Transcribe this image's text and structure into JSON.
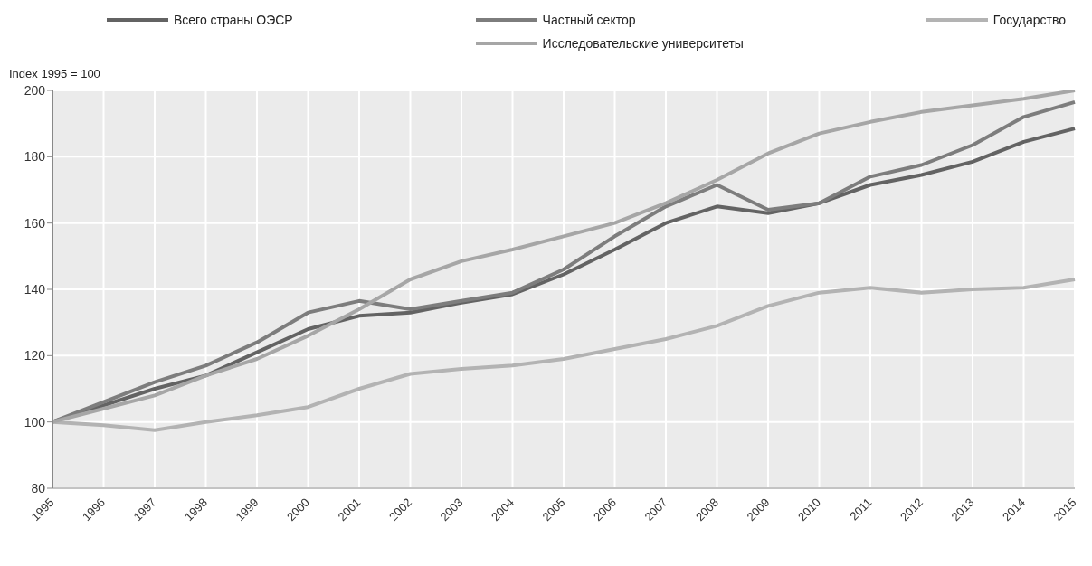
{
  "chart_data": {
    "type": "line",
    "ylabel": "Index 1995 = 100",
    "categories": [
      "1995",
      "1996",
      "1997",
      "1998",
      "1999",
      "2000",
      "2001",
      "2002",
      "2003",
      "2004",
      "2005",
      "2006",
      "2007",
      "2008",
      "2009",
      "2010",
      "2011",
      "2012",
      "2013",
      "2014",
      "2015"
    ],
    "series": [
      {
        "name": "Всего страны ОЭСР",
        "color": "#636363",
        "values": [
          100,
          105,
          110,
          114,
          121,
          128,
          132,
          133,
          136,
          138.5,
          144.5,
          152,
          160,
          165,
          163,
          166,
          171.5,
          174.5,
          178.5,
          184.5,
          188.5
        ]
      },
      {
        "name": "Частный сектор",
        "color": "#7d7d7d",
        "values": [
          100,
          106,
          112,
          117,
          124,
          133,
          136.5,
          134,
          136.5,
          139,
          146,
          156,
          165,
          171.5,
          164,
          166,
          174,
          177.5,
          183.5,
          192,
          196.5
        ]
      },
      {
        "name": "Государство",
        "color": "#b3b3b3",
        "values": [
          100,
          99,
          97.5,
          100,
          102,
          104.5,
          110,
          114.5,
          116,
          117,
          119,
          122,
          125,
          129,
          135,
          139,
          140.5,
          139,
          140,
          140.5,
          143
        ]
      },
      {
        "name": "Исследовательские университеты",
        "color": "#a6a6a6",
        "values": [
          100,
          104,
          108,
          114,
          119,
          126,
          134,
          143,
          148.5,
          152,
          156,
          160,
          166,
          173,
          181,
          187,
          190.5,
          193.5,
          195.5,
          197.5,
          200
        ]
      }
    ],
    "ylim": [
      80,
      200
    ],
    "yticks": [
      80,
      100,
      120,
      140,
      160,
      180,
      200
    ],
    "grid": true,
    "legend": "top",
    "line_style": "solid",
    "marker": "none"
  }
}
